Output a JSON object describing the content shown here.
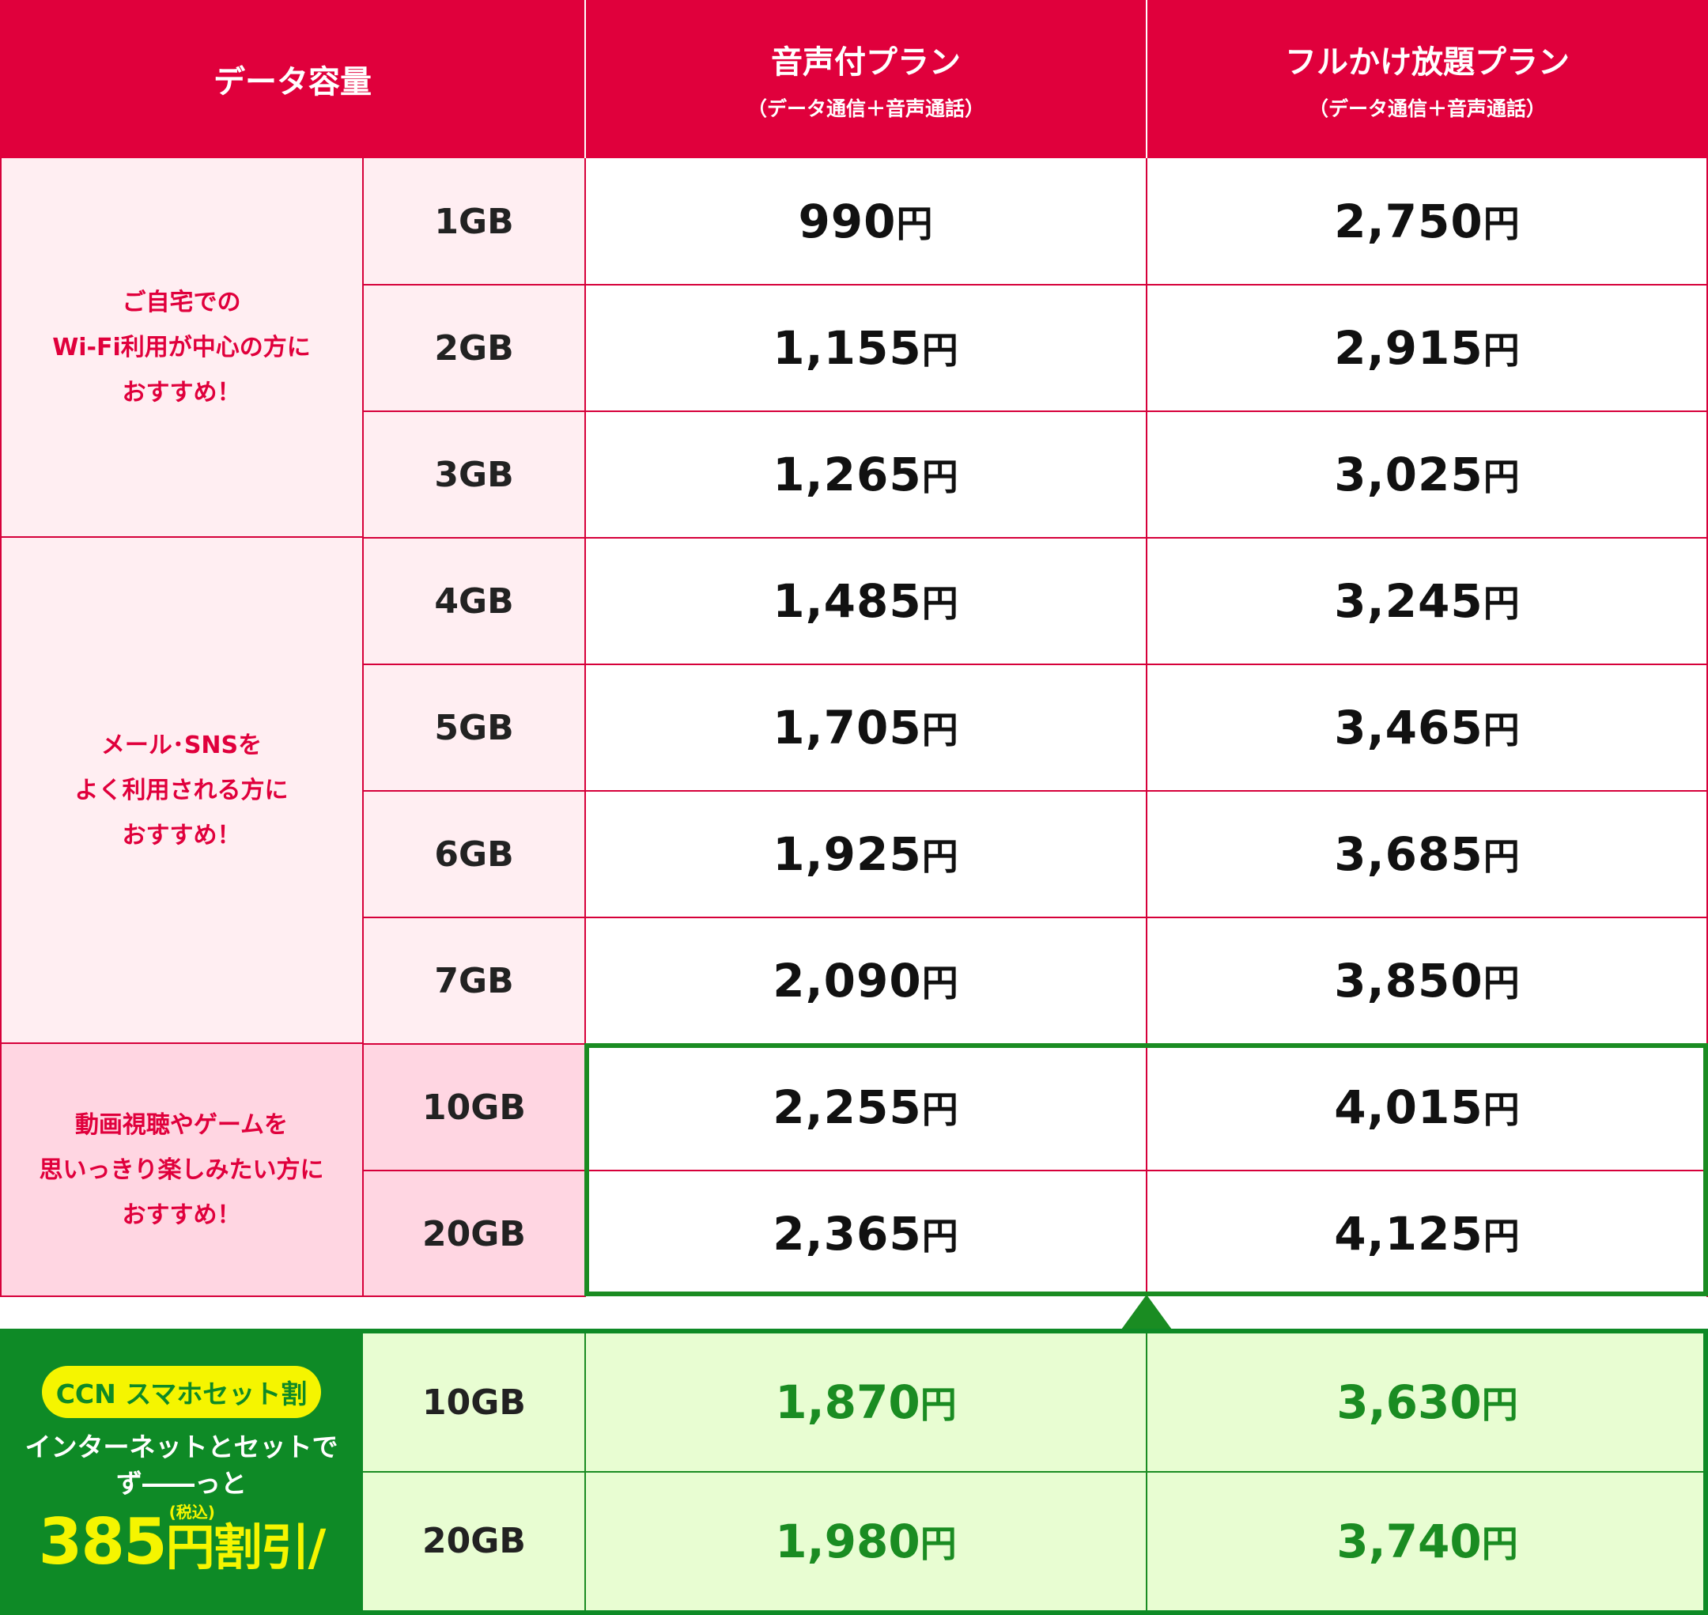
{
  "header": {
    "data_capacity": "データ容量",
    "plan1_title": "音声付プラン",
    "plan1_sub": "（データ通信＋音声通話）",
    "plan2_title": "フルかけ放題プラン",
    "plan2_sub": "（データ通信＋音声通話）"
  },
  "categories": [
    "ご自宅での\nWi-Fi利用が中心の方に\nおすすめ！",
    "メール･SNSを\nよく利用される方に\nおすすめ！",
    "動画視聴やゲームを\n思いっきり楽しみたい方に\nおすすめ！"
  ],
  "yen": "円",
  "rows": [
    {
      "gb": "1GB",
      "p1": "990",
      "p2": "2,750"
    },
    {
      "gb": "2GB",
      "p1": "1,155",
      "p2": "2,915"
    },
    {
      "gb": "3GB",
      "p1": "1,265",
      "p2": "3,025"
    },
    {
      "gb": "4GB",
      "p1": "1,485",
      "p2": "3,245"
    },
    {
      "gb": "5GB",
      "p1": "1,705",
      "p2": "3,465"
    },
    {
      "gb": "6GB",
      "p1": "1,925",
      "p2": "3,685"
    },
    {
      "gb": "7GB",
      "p1": "2,090",
      "p2": "3,850"
    },
    {
      "gb": "10GB",
      "p1": "2,255",
      "p2": "4,015"
    },
    {
      "gb": "20GB",
      "p1": "2,365",
      "p2": "4,125"
    }
  ],
  "promo": {
    "badge": "CCN スマホセット割",
    "line1": "インターネットとセットで",
    "line2": "ず――っと",
    "amount": "385",
    "tax": "(税込)",
    "unit": "円",
    "suffix": "割引/",
    "rows": [
      {
        "gb": "10GB",
        "p1": "1,870",
        "p2": "3,630"
      },
      {
        "gb": "20GB",
        "p1": "1,980",
        "p2": "3,740"
      }
    ]
  },
  "colors": {
    "header_red": "#e0003c",
    "pink_light": "#ffeef2",
    "pink_mid": "#ffd6e2",
    "green_dark": "#0e8a26",
    "green_light": "#e8fdd2",
    "yellow": "#f5f500"
  }
}
